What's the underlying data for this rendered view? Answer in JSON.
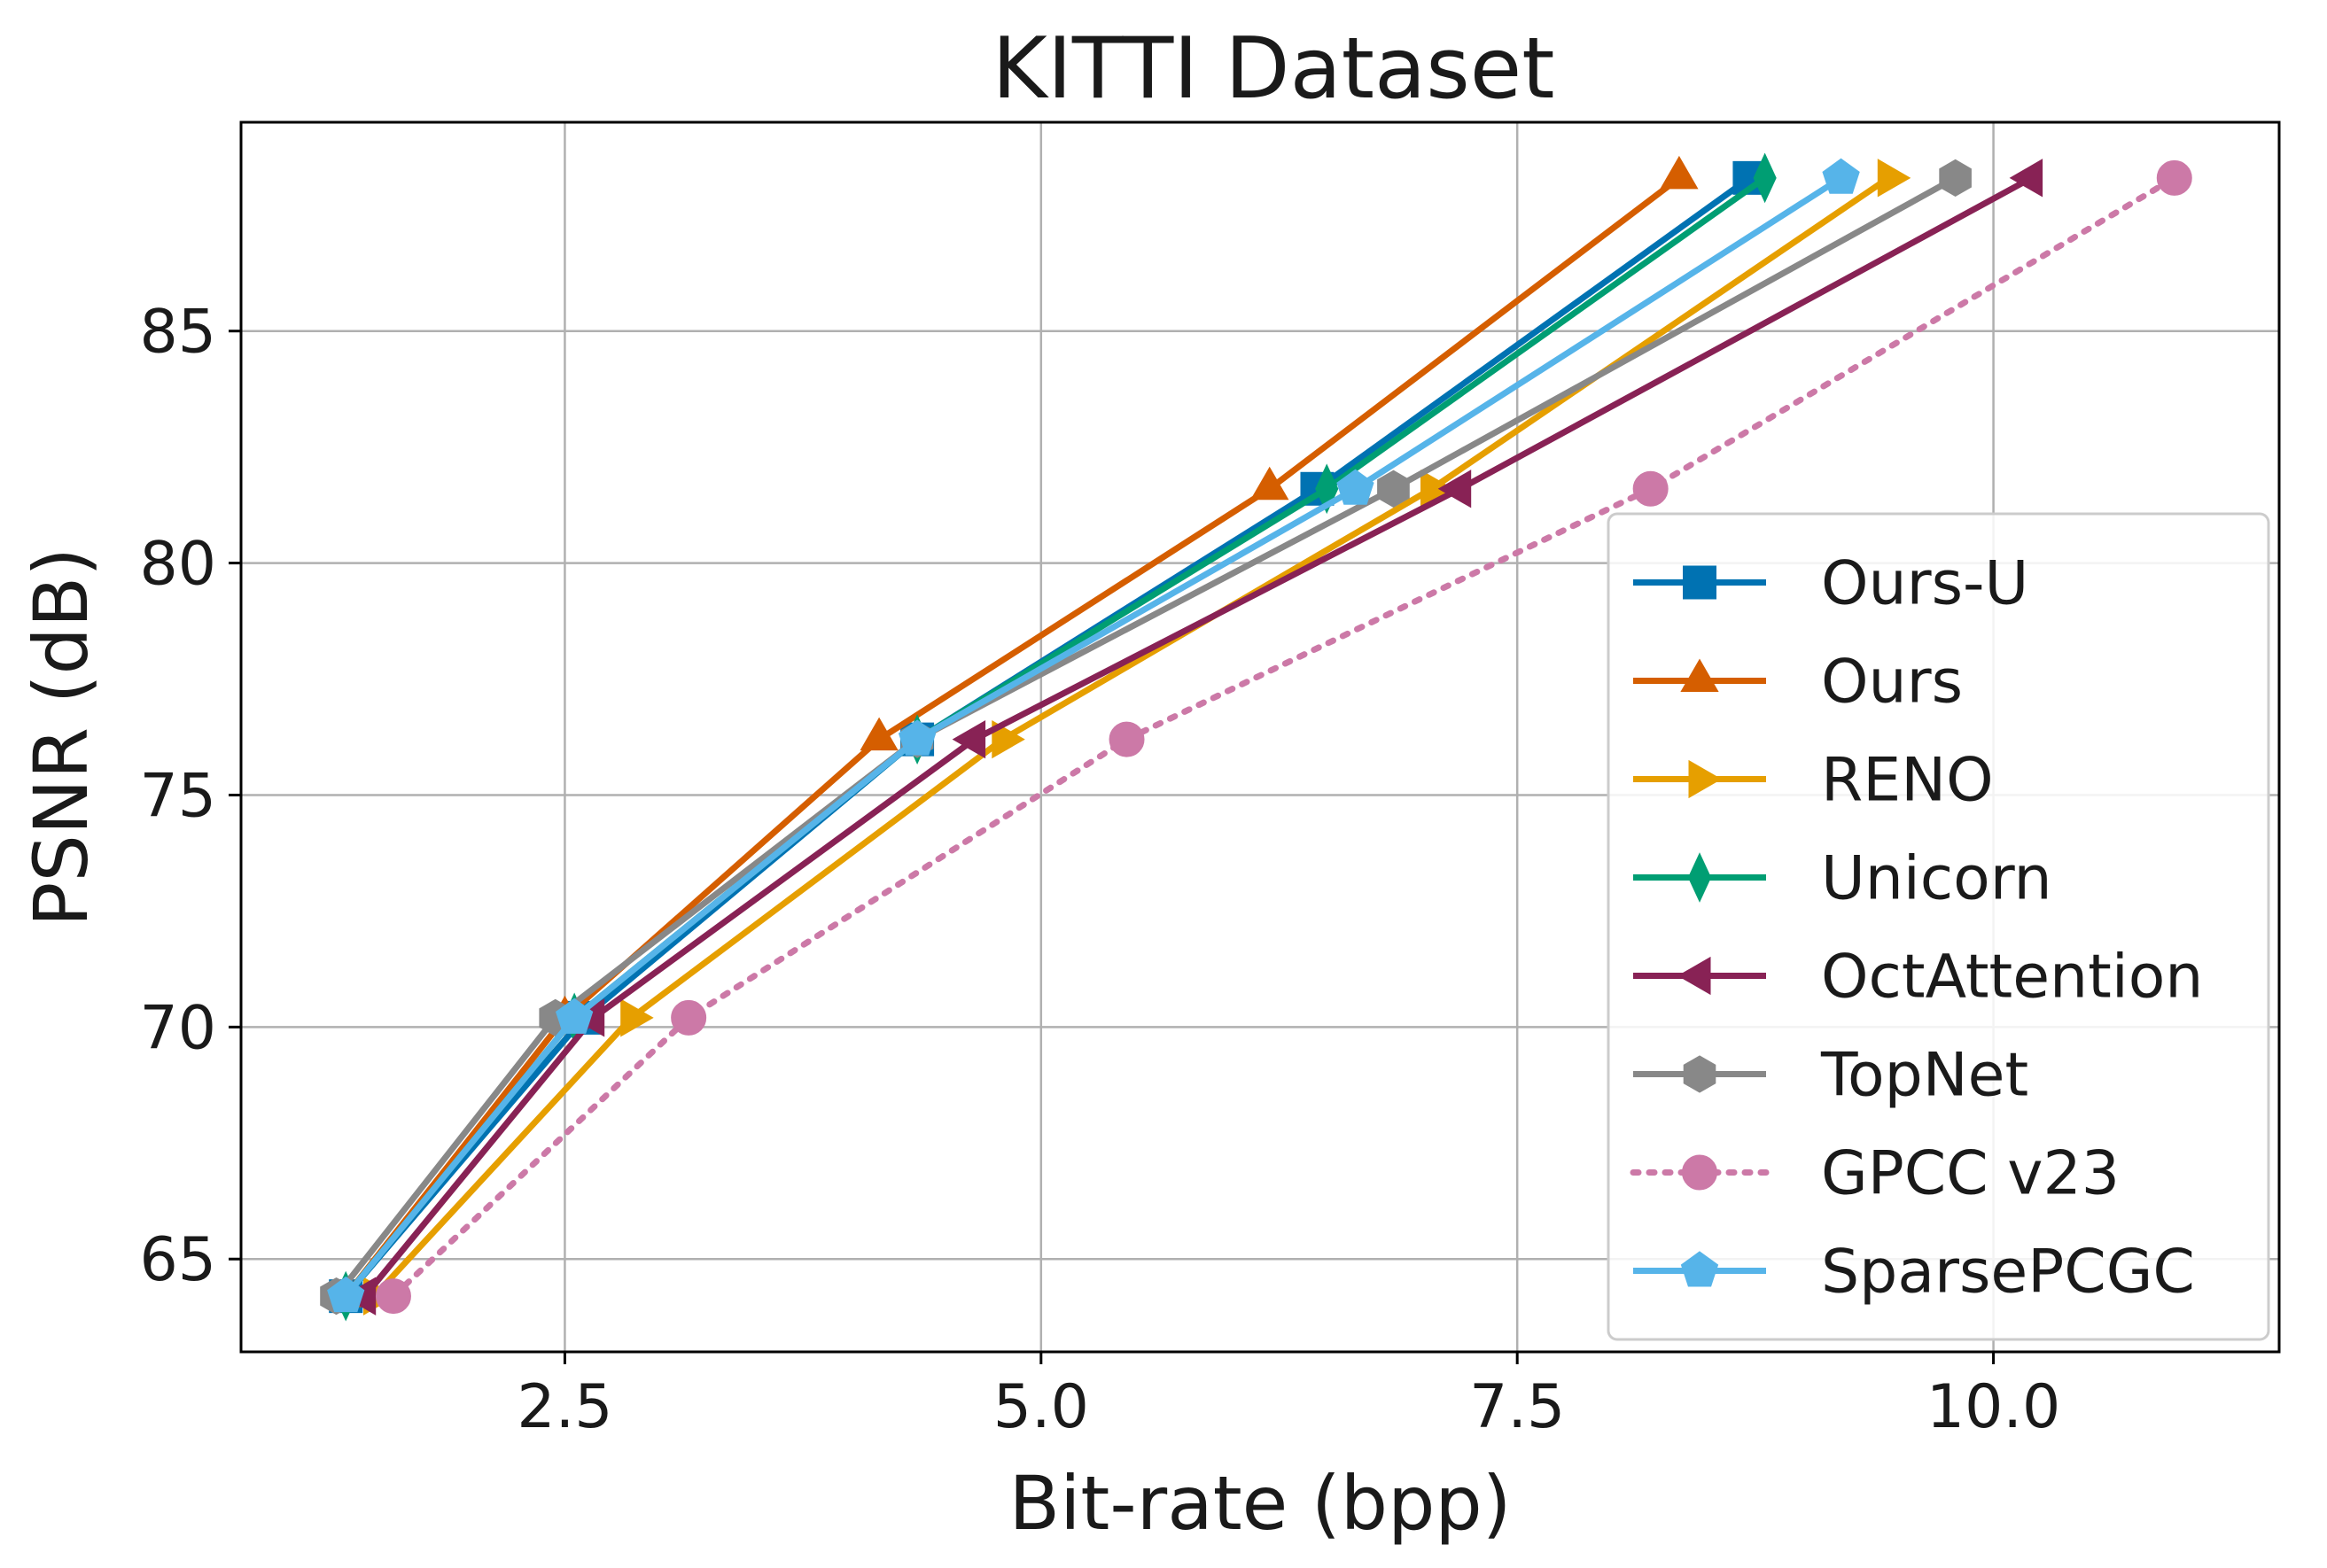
{
  "chart_data": {
    "type": "line",
    "title": "KITTI Dataset",
    "xlabel": "Bit-rate (bpp)",
    "ylabel": "PSNR (dB)",
    "xlim": [
      0.8,
      11.5
    ],
    "ylim": [
      63.0,
      89.5
    ],
    "xticks": [
      2.5,
      5.0,
      7.5,
      10.0
    ],
    "xtick_labels": [
      "2.5",
      "5.0",
      "7.5",
      "10.0"
    ],
    "yticks": [
      65,
      70,
      75,
      80,
      85
    ],
    "ytick_labels": [
      "65",
      "70",
      "75",
      "80",
      "85"
    ],
    "grid": true,
    "legend_position": "lower-right",
    "series": [
      {
        "name": "Ours-U",
        "color": "#0072b2",
        "marker": "square",
        "dash": "solid",
        "x": [
          1.35,
          2.6,
          4.35,
          6.45,
          8.72
        ],
        "y": [
          64.2,
          70.2,
          76.2,
          81.6,
          88.3
        ]
      },
      {
        "name": "Ours",
        "color": "#d55e00",
        "marker": "triangle-up",
        "dash": "solid",
        "x": [
          1.35,
          2.5,
          4.15,
          6.2,
          8.35
        ],
        "y": [
          64.2,
          70.2,
          76.2,
          81.6,
          88.3
        ]
      },
      {
        "name": "RENO",
        "color": "#e69f00",
        "marker": "triangle-right",
        "dash": "solid",
        "x": [
          1.5,
          2.85,
          4.8,
          7.05,
          9.45
        ],
        "y": [
          64.2,
          70.2,
          76.2,
          81.6,
          88.3
        ]
      },
      {
        "name": "Unicorn",
        "color": "#009e73",
        "marker": "thin-diamond",
        "dash": "solid",
        "x": [
          1.35,
          2.55,
          4.35,
          6.5,
          8.8
        ],
        "y": [
          64.2,
          70.2,
          76.2,
          81.6,
          88.3
        ]
      },
      {
        "name": "OctAttention",
        "color": "#882255",
        "marker": "triangle-left",
        "dash": "solid",
        "x": [
          1.45,
          2.65,
          4.65,
          7.2,
          10.2
        ],
        "y": [
          64.2,
          70.2,
          76.2,
          81.6,
          88.3
        ]
      },
      {
        "name": "TopNet",
        "color": "#888888",
        "marker": "hexagon",
        "dash": "solid",
        "x": [
          1.3,
          2.45,
          4.35,
          6.85,
          9.8
        ],
        "y": [
          64.2,
          70.2,
          76.2,
          81.6,
          88.3
        ]
      },
      {
        "name": "GPCC v23",
        "color": "#cc79a7",
        "marker": "circle",
        "dash": "dotted",
        "x": [
          1.6,
          3.15,
          5.45,
          8.2,
          10.95
        ],
        "y": [
          64.2,
          70.2,
          76.2,
          81.6,
          88.3
        ]
      },
      {
        "name": "SparsePCGC",
        "color": "#56b4e9",
        "marker": "pentagon",
        "dash": "solid",
        "x": [
          1.35,
          2.55,
          4.35,
          6.65,
          9.2
        ],
        "y": [
          64.2,
          70.2,
          76.2,
          81.6,
          88.3
        ]
      }
    ]
  }
}
